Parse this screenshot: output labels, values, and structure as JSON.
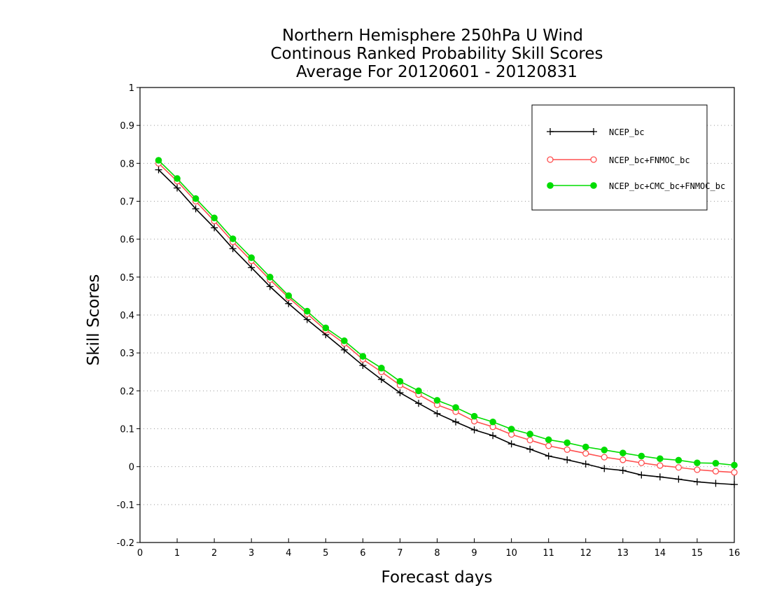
{
  "chart_data": {
    "type": "line",
    "title": [
      "Northern Hemisphere 250hPa U Wind",
      "Continous Ranked Probability Skill Scores",
      "Average For 20120601 - 20120831"
    ],
    "xlabel": "Forecast days",
    "ylabel": "Skill Scores",
    "xlim": [
      0,
      16
    ],
    "ylim": [
      -0.2,
      1
    ],
    "xticks": [
      0,
      1,
      2,
      3,
      4,
      5,
      6,
      7,
      8,
      9,
      10,
      11,
      12,
      13,
      14,
      15,
      16
    ],
    "yticks": [
      -0.2,
      -0.1,
      0,
      0.1,
      0.2,
      0.3,
      0.4,
      0.5,
      0.6,
      0.7,
      0.8,
      0.9,
      1
    ],
    "ytick_labels": [
      "-0.2",
      "-0.1",
      "0",
      "0.1",
      "0.2",
      "0.3",
      "0.4",
      "0.5",
      "0.6",
      "0.7",
      "0.8",
      "0.9",
      "1"
    ],
    "grid": "horizontal-dotted",
    "legend_position": "top-right",
    "x": [
      0.5,
      1,
      1.5,
      2,
      2.5,
      3,
      3.5,
      4,
      4.5,
      5,
      5.5,
      6,
      6.5,
      7,
      7.5,
      8,
      8.5,
      9,
      9.5,
      10,
      10.5,
      11,
      11.5,
      12,
      12.5,
      13,
      13.5,
      14,
      14.5,
      15,
      15.5,
      16
    ],
    "series": [
      {
        "name": "NCEP_bc",
        "color": "#000000",
        "marker": "plus",
        "values": [
          0.783,
          0.735,
          0.68,
          0.63,
          0.575,
          0.525,
          0.475,
          0.43,
          0.388,
          0.348,
          0.308,
          0.267,
          0.23,
          0.195,
          0.167,
          0.14,
          0.118,
          0.097,
          0.082,
          0.06,
          0.046,
          0.028,
          0.018,
          0.007,
          -0.005,
          -0.01,
          -0.022,
          -0.027,
          -0.033,
          -0.04,
          -0.044,
          -0.047
        ]
      },
      {
        "name": "NCEP_bc+FNMOC_bc",
        "color": "#ff5050",
        "marker": "open-circle",
        "values": [
          0.8,
          0.753,
          0.7,
          0.648,
          0.593,
          0.543,
          0.493,
          0.446,
          0.403,
          0.36,
          0.325,
          0.283,
          0.25,
          0.215,
          0.19,
          0.163,
          0.145,
          0.12,
          0.105,
          0.085,
          0.07,
          0.055,
          0.045,
          0.035,
          0.025,
          0.018,
          0.01,
          0.003,
          -0.002,
          -0.008,
          -0.012,
          -0.015
        ]
      },
      {
        "name": "NCEP_bc+CMC_bc+FNMOC_bc",
        "color": "#00dd00",
        "marker": "filled-circle",
        "values": [
          0.808,
          0.76,
          0.707,
          0.656,
          0.601,
          0.551,
          0.5,
          0.451,
          0.41,
          0.366,
          0.332,
          0.291,
          0.26,
          0.225,
          0.2,
          0.175,
          0.156,
          0.133,
          0.118,
          0.099,
          0.086,
          0.071,
          0.063,
          0.052,
          0.044,
          0.036,
          0.028,
          0.021,
          0.017,
          0.01,
          0.009,
          0.004
        ]
      }
    ]
  }
}
